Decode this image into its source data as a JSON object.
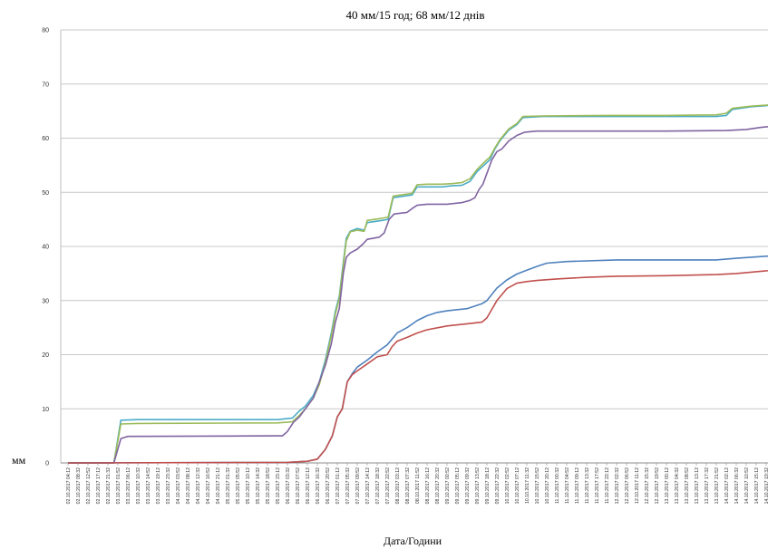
{
  "chart_data": {
    "type": "line",
    "title": "40 мм/15 год; 68 мм/12 днів",
    "xlabel": "Дата/Години",
    "ylabel": "мм",
    "ylim": [
      0,
      80
    ],
    "yticks": [
      0,
      10,
      20,
      30,
      40,
      50,
      60,
      70,
      80
    ],
    "grid": true,
    "xticks": [
      "02.10.2017 04:12",
      "02.10.2017 08:32",
      "02.10.2017 12:52",
      "02.10.2017 17:12",
      "02.10.2017 21:32",
      "03.10.2017 01:52",
      "03.10.2017 06:12",
      "03.10.2017 10:32",
      "03.10.2017 14:52",
      "03.10.2017 19:12",
      "03.10.2017 23:32",
      "04.10.2017 03:52",
      "04.10.2017 08:12",
      "04.10.2017 12:32",
      "04.10.2017 16:52",
      "04.10.2017 21:12",
      "05.10.2017 01:32",
      "05.10.2017 05:52",
      "05.10.2017 10:12",
      "05.10.2017 14:32",
      "05.10.2017 18:52",
      "05.10.2017 23:12",
      "06.10.2017 03:32",
      "06.10.2017 07:52",
      "06.10.2017 12:12",
      "06.10.2017 16:32",
      "06.10.2017 20:52",
      "07.10.2017 01:12",
      "07.10.2017 05:32",
      "07.10.2017 09:52",
      "07.10.2017 14:12",
      "07.10.2017 18:32",
      "07.10.2017 22:52",
      "08.10.2017 03:12",
      "08.10.2017 07:32",
      "08.10.2017 11:52",
      "08.10.2017 16:12",
      "08.10.2017 20:32",
      "09.10.2017 00:52",
      "09.10.2017 05:12",
      "09.10.2017 09:32",
      "09.10.2017 13:52",
      "09.10.2017 18:12",
      "09.10.2017 22:32",
      "10.10.2017 02:52",
      "10.10.2017 07:12",
      "10.10.2017 11:32",
      "10.10.2017 15:52",
      "10.10.2017 20:12",
      "11.10.2017 00:32",
      "11.10.2017 04:52",
      "11.10.2017 09:12",
      "11.10.2017 13:32",
      "11.10.2017 17:52",
      "11.10.2017 22:12",
      "12.10.2017 02:32",
      "12.10.2017 06:52",
      "12.10.2017 11:12",
      "12.10.2017 15:32",
      "12.10.2017 19:52",
      "13.10.2017 00:12",
      "13.10.2017 04:32",
      "13.10.2017 08:52",
      "13.10.2017 13:12",
      "13.10.2017 17:32",
      "13.10.2017 21:52",
      "14.10.2017 02:12",
      "14.10.2017 06:32",
      "14.10.2017 10:52",
      "14.10.2017 15:12",
      "14.10.2017 19:32"
    ],
    "series": [
      {
        "color": "#4bacc6",
        "points": [
          [
            0,
            0
          ],
          [
            4.6,
            0
          ],
          [
            5.3,
            7.9
          ],
          [
            7,
            8
          ],
          [
            21,
            8
          ],
          [
            22.5,
            8.3
          ],
          [
            23.2,
            9.6
          ],
          [
            23.8,
            10.5
          ],
          [
            24.6,
            12.5
          ],
          [
            25.2,
            15
          ],
          [
            25.8,
            19
          ],
          [
            26.4,
            24
          ],
          [
            26.8,
            28
          ],
          [
            27.2,
            30.8
          ],
          [
            27.6,
            37
          ],
          [
            27.9,
            41.5
          ],
          [
            28.3,
            42.8
          ],
          [
            29,
            43.3
          ],
          [
            29.7,
            43
          ],
          [
            30,
            44.4
          ],
          [
            31.5,
            44.8
          ],
          [
            32.1,
            45
          ],
          [
            32.6,
            49
          ],
          [
            34.5,
            49.5
          ],
          [
            35,
            51
          ],
          [
            36,
            51
          ],
          [
            37.5,
            51
          ],
          [
            38.5,
            51.2
          ],
          [
            39.5,
            51.3
          ],
          [
            40.3,
            52
          ],
          [
            41,
            53.8
          ],
          [
            41.7,
            55
          ],
          [
            42.3,
            56
          ],
          [
            42.8,
            58
          ],
          [
            43.3,
            59.5
          ],
          [
            44.2,
            61.5
          ],
          [
            45,
            62.5
          ],
          [
            45.6,
            63.8
          ],
          [
            47.5,
            64
          ],
          [
            54,
            64
          ],
          [
            60,
            64
          ],
          [
            65,
            64
          ],
          [
            66,
            64.2
          ],
          [
            66.6,
            65.3
          ],
          [
            68.5,
            65.8
          ],
          [
            70,
            66
          ],
          [
            71.5,
            66.8
          ],
          [
            73,
            67
          ],
          [
            75,
            67.2
          ],
          [
            76.5,
            67.4
          ],
          [
            82,
            67.5
          ],
          [
            94,
            67.5
          ]
        ]
      },
      {
        "color": "#9bbb59",
        "points": [
          [
            0,
            0
          ],
          [
            4.6,
            0
          ],
          [
            5.3,
            7.2
          ],
          [
            7,
            7.3
          ],
          [
            21,
            7.4
          ],
          [
            22.5,
            7.6
          ],
          [
            23.2,
            8.8
          ],
          [
            23.8,
            10
          ],
          [
            24.6,
            12
          ],
          [
            25.2,
            14.5
          ],
          [
            25.8,
            18.5
          ],
          [
            26.4,
            23.5
          ],
          [
            26.8,
            27.5
          ],
          [
            27.2,
            30.4
          ],
          [
            27.6,
            36.5
          ],
          [
            27.9,
            41
          ],
          [
            28.3,
            42.7
          ],
          [
            29,
            43
          ],
          [
            29.7,
            42.8
          ],
          [
            30,
            44.8
          ],
          [
            31.5,
            45.2
          ],
          [
            32.1,
            45.4
          ],
          [
            32.6,
            49.3
          ],
          [
            34.5,
            49.8
          ],
          [
            35,
            51.4
          ],
          [
            36,
            51.5
          ],
          [
            37.5,
            51.5
          ],
          [
            38.5,
            51.6
          ],
          [
            39.5,
            51.8
          ],
          [
            40.3,
            52.5
          ],
          [
            41,
            54.2
          ],
          [
            41.7,
            55.5
          ],
          [
            42.3,
            56.5
          ],
          [
            42.8,
            58.2
          ],
          [
            43.3,
            59.7
          ],
          [
            44.2,
            61.7
          ],
          [
            45,
            62.7
          ],
          [
            45.6,
            64
          ],
          [
            47.5,
            64.1
          ],
          [
            54,
            64.2
          ],
          [
            60,
            64.2
          ],
          [
            65,
            64.3
          ],
          [
            66,
            64.6
          ],
          [
            66.6,
            65.5
          ],
          [
            68.5,
            65.9
          ],
          [
            70,
            66.1
          ],
          [
            71.5,
            66.4
          ],
          [
            73,
            66.6
          ],
          [
            75,
            66.8
          ],
          [
            76.5,
            67
          ],
          [
            82,
            67
          ],
          [
            94,
            67
          ]
        ]
      },
      {
        "color": "#8064a2",
        "points": [
          [
            0,
            0
          ],
          [
            4.6,
            0
          ],
          [
            5.3,
            4.5
          ],
          [
            6,
            4.9
          ],
          [
            21,
            5
          ],
          [
            21.5,
            5
          ],
          [
            22,
            5.8
          ],
          [
            22.6,
            7.5
          ],
          [
            23.2,
            8.5
          ],
          [
            23.8,
            10
          ],
          [
            24.6,
            12
          ],
          [
            25.2,
            15
          ],
          [
            25.8,
            18
          ],
          [
            26.4,
            22
          ],
          [
            26.8,
            26
          ],
          [
            27.2,
            28.5
          ],
          [
            27.6,
            35
          ],
          [
            27.9,
            38
          ],
          [
            28.3,
            38.8
          ],
          [
            29,
            39.5
          ],
          [
            29.6,
            40.5
          ],
          [
            30,
            41.3
          ],
          [
            31.2,
            41.7
          ],
          [
            31.7,
            42.5
          ],
          [
            32.2,
            45
          ],
          [
            32.7,
            46
          ],
          [
            34,
            46.3
          ],
          [
            34.5,
            47
          ],
          [
            35,
            47.6
          ],
          [
            36,
            47.8
          ],
          [
            38,
            47.8
          ],
          [
            39.5,
            48.1
          ],
          [
            40.3,
            48.5
          ],
          [
            40.8,
            49
          ],
          [
            41.2,
            50.5
          ],
          [
            41.6,
            51.5
          ],
          [
            42,
            53.5
          ],
          [
            42.5,
            56
          ],
          [
            43,
            57.5
          ],
          [
            43.5,
            58
          ],
          [
            44.2,
            59.5
          ],
          [
            45,
            60.5
          ],
          [
            45.8,
            61.1
          ],
          [
            47,
            61.3
          ],
          [
            60,
            61.3
          ],
          [
            66,
            61.4
          ],
          [
            68,
            61.6
          ],
          [
            69.5,
            62
          ],
          [
            71,
            62.3
          ],
          [
            72,
            62.7
          ],
          [
            74,
            62.8
          ],
          [
            94,
            62.8
          ]
        ]
      },
      {
        "color": "#4f81bd",
        "points": [
          [
            0,
            0
          ],
          [
            22,
            0.1
          ],
          [
            23,
            0.2
          ],
          [
            24,
            0.3
          ],
          [
            25,
            0.7
          ],
          [
            25.8,
            2.5
          ],
          [
            26.5,
            5
          ],
          [
            27,
            8.5
          ],
          [
            27.5,
            10
          ],
          [
            28,
            15
          ],
          [
            28.5,
            16.5
          ],
          [
            29,
            17.7
          ],
          [
            30,
            19
          ],
          [
            31,
            20.5
          ],
          [
            32,
            21.8
          ],
          [
            33,
            24
          ],
          [
            34,
            25
          ],
          [
            35,
            26.3
          ],
          [
            36,
            27.2
          ],
          [
            37,
            27.8
          ],
          [
            38,
            28.1
          ],
          [
            40,
            28.5
          ],
          [
            41.5,
            29.4
          ],
          [
            42,
            30
          ],
          [
            43,
            32.3
          ],
          [
            44,
            33.8
          ],
          [
            45,
            34.9
          ],
          [
            46,
            35.6
          ],
          [
            47,
            36.3
          ],
          [
            48,
            36.9
          ],
          [
            50,
            37.2
          ],
          [
            55,
            37.5
          ],
          [
            60,
            37.5
          ],
          [
            65,
            37.5
          ],
          [
            67,
            37.8
          ],
          [
            70,
            38.2
          ],
          [
            73,
            38.6
          ],
          [
            75,
            38.9
          ],
          [
            80,
            39
          ],
          [
            94,
            39
          ]
        ]
      },
      {
        "color": "#c0504d",
        "points": [
          [
            0,
            0
          ],
          [
            22,
            0.1
          ],
          [
            23,
            0.2
          ],
          [
            24,
            0.3
          ],
          [
            25,
            0.7
          ],
          [
            25.8,
            2.5
          ],
          [
            26.5,
            5
          ],
          [
            27,
            8.5
          ],
          [
            27.5,
            10
          ],
          [
            28,
            15
          ],
          [
            28.5,
            16.3
          ],
          [
            29,
            17
          ],
          [
            30,
            18.3
          ],
          [
            31,
            19.6
          ],
          [
            32,
            20
          ],
          [
            32.5,
            21.5
          ],
          [
            33,
            22.5
          ],
          [
            34,
            23.2
          ],
          [
            35,
            24
          ],
          [
            36,
            24.6
          ],
          [
            38,
            25.3
          ],
          [
            40,
            25.7
          ],
          [
            41.5,
            26
          ],
          [
            42,
            26.8
          ],
          [
            43,
            30
          ],
          [
            44,
            32.2
          ],
          [
            45,
            33.2
          ],
          [
            46,
            33.5
          ],
          [
            47,
            33.7
          ],
          [
            49,
            34
          ],
          [
            52,
            34.3
          ],
          [
            55,
            34.5
          ],
          [
            60,
            34.6
          ],
          [
            65,
            34.8
          ],
          [
            67,
            35
          ],
          [
            70,
            35.5
          ],
          [
            73,
            35.9
          ],
          [
            75,
            36
          ],
          [
            80,
            36.1
          ],
          [
            94,
            36.1
          ]
        ]
      }
    ]
  }
}
